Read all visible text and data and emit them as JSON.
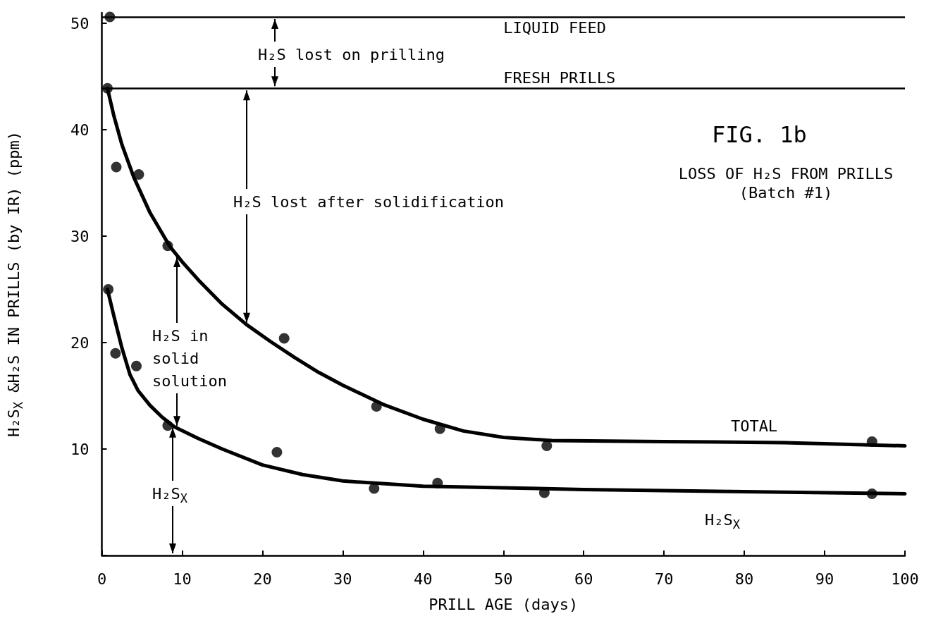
{
  "chart_data": {
    "type": "scatter",
    "title": "FIG. 1b",
    "subtitle": "LOSS OF H₂S FROM PRILLS\n(Batch #1)",
    "xlabel": "PRILL AGE (days)",
    "ylabel": "H₂S$_{X}$ &H₂S IN PRILLS (by IR) (ppm)",
    "series": [
      {
        "color": "#000000",
        "x": [
          0.7,
          1.8,
          4.6,
          8.2,
          22.7,
          34.2,
          42.1,
          55.4,
          95.9
        ],
        "values": [
          43.9,
          36.5,
          35.8,
          29.1,
          20.4,
          14.0,
          11.9,
          10.3,
          10.7
        ]
      },
      {
        "type": "line",
        "marker": "none",
        "color": "#000000",
        "x": [
          0.7,
          1.5,
          2.5,
          4,
          6,
          8.5,
          10,
          12,
          15,
          18,
          21,
          24,
          27,
          30,
          35,
          40,
          45,
          50,
          56,
          70,
          85,
          100
        ],
        "values": [
          43.9,
          41.3,
          38.6,
          35.5,
          32.2,
          29,
          27.6,
          25.9,
          23.6,
          21.7,
          20.1,
          18.6,
          17.2,
          16,
          14.2,
          12.8,
          11.7,
          11.1,
          10.8,
          10.7,
          10.6,
          10.3
        ]
      },
      {
        "color": "#000000",
        "x": [
          0.8,
          1.7,
          4.3,
          8.2,
          21.8,
          33.9,
          41.8,
          55.1,
          95.9
        ],
        "values": [
          25.0,
          19.0,
          17.8,
          12.2,
          9.7,
          6.3,
          6.8,
          5.9,
          5.8
        ]
      },
      {
        "type": "line",
        "marker": "none",
        "color": "#000000",
        "x": [
          0.7,
          1.5,
          2.5,
          3.5,
          4.5,
          6,
          7.5,
          9,
          12,
          15,
          20,
          25,
          30,
          40,
          60,
          80,
          100
        ],
        "values": [
          25,
          22.5,
          19.5,
          17,
          15.5,
          14.1,
          13.0,
          12.1,
          11,
          10,
          8.5,
          7.6,
          7.0,
          6.5,
          6.2,
          6.0,
          5.8
        ]
      },
      {
        "color": "#000000",
        "x": [
          1.0
        ],
        "values": [
          50.6
        ]
      }
    ],
    "marker": "circle",
    "xlim": [
      0,
      100
    ],
    "xticks": [
      0,
      10,
      20,
      30,
      40,
      50,
      60,
      70,
      80,
      90,
      100
    ],
    "ylim": [
      0,
      51
    ],
    "yticks": [
      {
        "value": 0,
        "label": null
      },
      10,
      20,
      30,
      40,
      50
    ],
    "ref_lines": [
      {
        "axis": "y",
        "value": 50.6,
        "label": "LIQUID FEED",
        "color": "#000000"
      },
      {
        "axis": "y",
        "value": 43.9,
        "label": "FRESH PRILLS",
        "color": "#000000"
      }
    ],
    "annotations": [
      "H₂S lost on prilling",
      "H₂S lost after solidification",
      "H₂S in\nsolid\nsolution",
      "H₂S$_{X}$",
      "TOTAL",
      "H₂S$_{X}$"
    ],
    "grid": false
  }
}
